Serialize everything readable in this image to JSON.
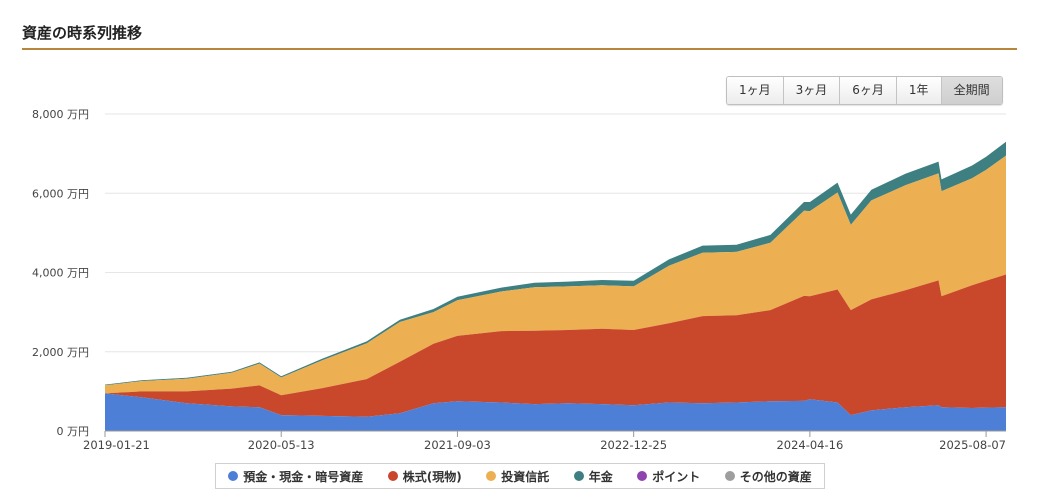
{
  "header": {
    "title": "資産の時系列推移"
  },
  "range_buttons": [
    {
      "label": "1ヶ月",
      "active": false
    },
    {
      "label": "3ヶ月",
      "active": false
    },
    {
      "label": "6ヶ月",
      "active": false
    },
    {
      "label": "1年",
      "active": false
    },
    {
      "label": "全期間",
      "active": true
    }
  ],
  "legend": [
    {
      "label": "預金・現金・暗号資産",
      "color": "#4d7fd6"
    },
    {
      "label": "株式(現物)",
      "color": "#c9472b"
    },
    {
      "label": "投資信託",
      "color": "#ecaf52"
    },
    {
      "label": "年金",
      "color": "#3e8082"
    },
    {
      "label": "ポイント",
      "color": "#8e44ad"
    },
    {
      "label": "その他の資産",
      "color": "#9e9e9e"
    }
  ],
  "chart_data": {
    "type": "area",
    "stacked": true,
    "y_unit": "万円",
    "ylim": [
      0,
      8000
    ],
    "y_ticks": [
      {
        "value": 0,
        "label": "0 万円"
      },
      {
        "value": 2000,
        "label": "2,000 万円"
      },
      {
        "value": 4000,
        "label": "4,000 万円"
      },
      {
        "value": 6000,
        "label": "6,000 万円"
      },
      {
        "value": 8000,
        "label": "8,000 万円"
      }
    ],
    "x_ticks": [
      "2019-01-21",
      "2020-05-13",
      "2021-09-03",
      "2022-12-25",
      "2024-04-16",
      "2025-08-07"
    ],
    "x": [
      "2019-01-21",
      "2019-04-30",
      "2019-08-31",
      "2019-12-31",
      "2020-03-15",
      "2020-05-13",
      "2020-08-31",
      "2020-12-31",
      "2021-03-31",
      "2021-06-30",
      "2021-09-03",
      "2021-12-31",
      "2022-03-31",
      "2022-06-30",
      "2022-09-30",
      "2022-12-25",
      "2023-03-31",
      "2023-06-30",
      "2023-09-30",
      "2023-12-31",
      "2024-03-31",
      "2024-04-16",
      "2024-06-30",
      "2024-08-05",
      "2024-09-30",
      "2024-12-31",
      "2025-03-31",
      "2025-04-08",
      "2025-06-30",
      "2025-08-07",
      "2025-09-30"
    ],
    "series": [
      {
        "name": "預金・現金・暗号資産",
        "color": "#4d7fd6",
        "values": [
          950,
          850,
          700,
          620,
          600,
          400,
          380,
          360,
          450,
          700,
          750,
          720,
          680,
          700,
          680,
          650,
          720,
          700,
          720,
          750,
          760,
          800,
          720,
          400,
          520,
          600,
          650,
          600,
          580,
          590,
          600
        ]
      },
      {
        "name": "株式(現物)",
        "color": "#c9472b",
        "values": [
          0,
          150,
          300,
          450,
          550,
          500,
          700,
          950,
          1300,
          1500,
          1650,
          1800,
          1850,
          1850,
          1900,
          1900,
          2000,
          2200,
          2200,
          2300,
          2650,
          2600,
          2850,
          2650,
          2800,
          2950,
          3150,
          2800,
          3100,
          3200,
          3350
        ]
      },
      {
        "name": "投資信託",
        "color": "#ecaf52",
        "values": [
          200,
          260,
          320,
          400,
          550,
          450,
          700,
          900,
          1000,
          800,
          900,
          1000,
          1100,
          1100,
          1100,
          1100,
          1450,
          1600,
          1600,
          1700,
          2150,
          2150,
          2450,
          2150,
          2500,
          2650,
          2700,
          2650,
          2700,
          2800,
          3000
        ]
      },
      {
        "name": "年金",
        "color": "#3e8082",
        "values": [
          20,
          20,
          25,
          25,
          30,
          30,
          40,
          50,
          60,
          80,
          90,
          100,
          110,
          120,
          130,
          140,
          160,
          180,
          180,
          200,
          220,
          230,
          250,
          260,
          270,
          290,
          300,
          300,
          320,
          330,
          350
        ]
      }
    ]
  }
}
